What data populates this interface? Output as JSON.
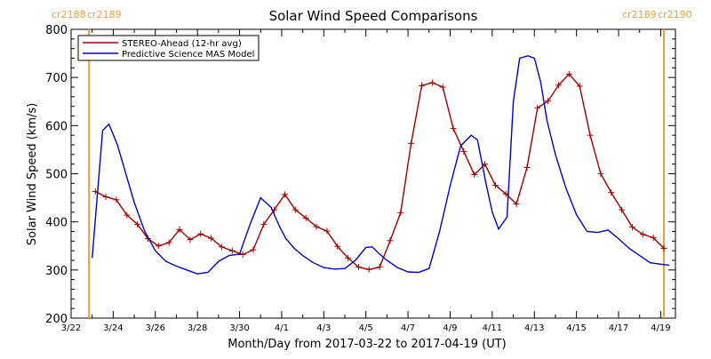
{
  "chart_data": {
    "type": "line",
    "title": "Solar Wind Speed Comparisons",
    "xlabel": "Month/Day from 2017-03-22 to 2017-04-19 (UT)",
    "ylabel": "Solar Wind Speed (km/s)",
    "xlim": [
      0,
      28.7
    ],
    "ylim": [
      200,
      800
    ],
    "yticks": [
      200,
      300,
      400,
      500,
      600,
      700,
      800
    ],
    "xticks": [
      {
        "x": 0,
        "label": "3/22"
      },
      {
        "x": 2,
        "label": "3/24"
      },
      {
        "x": 4,
        "label": "3/26"
      },
      {
        "x": 6,
        "label": "3/28"
      },
      {
        "x": 8,
        "label": "3/30"
      },
      {
        "x": 10,
        "label": "4/1"
      },
      {
        "x": 12,
        "label": "4/3"
      },
      {
        "x": 14,
        "label": "4/5"
      },
      {
        "x": 16,
        "label": "4/7"
      },
      {
        "x": 18,
        "label": "4/9"
      },
      {
        "x": 20,
        "label": "4/11"
      },
      {
        "x": 22,
        "label": "4/13"
      },
      {
        "x": 24,
        "label": "4/15"
      },
      {
        "x": 26,
        "label": "4/17"
      },
      {
        "x": 28,
        "label": "4/19"
      }
    ],
    "grid": false,
    "legend_position": "top-left",
    "colors": {
      "axes": "#000000",
      "rotation_marker": "#e8a040",
      "stereo": "#a00000",
      "mas": "#0000cc"
    },
    "rotation_markers": [
      {
        "x": 0.85,
        "label_left": "cr2188",
        "label_right": "cr2189"
      },
      {
        "x": 28.15,
        "label_left": "cr2189",
        "label_right": "cr2190"
      }
    ],
    "series": [
      {
        "name": "STEREO-Ahead (12-hr avg)",
        "marker": "plus",
        "x": [
          1.15,
          1.65,
          2.15,
          2.65,
          3.15,
          3.65,
          4.15,
          4.65,
          5.15,
          5.65,
          6.15,
          6.65,
          7.15,
          7.65,
          8.15,
          8.65,
          9.15,
          9.65,
          10.15,
          10.65,
          11.15,
          11.65,
          12.15,
          12.65,
          13.15,
          13.65,
          14.15,
          14.65,
          15.15,
          15.65,
          16.15,
          16.65,
          17.15,
          17.65,
          18.15,
          18.65,
          19.15,
          19.65,
          20.15,
          20.65,
          21.15,
          21.65,
          22.15,
          22.65,
          23.15,
          23.65,
          24.15,
          24.65,
          25.15,
          25.65,
          26.15,
          26.65,
          27.15,
          27.65,
          28.15
        ],
        "values": [
          463,
          452,
          446,
          414,
          395,
          365,
          350,
          357,
          384,
          363,
          375,
          366,
          348,
          340,
          332,
          342,
          395,
          425,
          457,
          425,
          408,
          390,
          381,
          349,
          325,
          306,
          301,
          306,
          361,
          419,
          563,
          683,
          689,
          680,
          594,
          546,
          498,
          520,
          476,
          458,
          437,
          513,
          637,
          651,
          684,
          707,
          682,
          580,
          500,
          461,
          425,
          389,
          374,
          367,
          345
        ]
      },
      {
        "name": "Predictive Science MAS Model",
        "marker": "none",
        "x": [
          1.0,
          1.5,
          1.8,
          2.2,
          2.6,
          3.0,
          3.5,
          4.0,
          4.5,
          5.0,
          5.5,
          6.0,
          6.5,
          7.0,
          7.5,
          8.0,
          8.5,
          9.0,
          9.5,
          9.9,
          10.2,
          10.6,
          11.0,
          11.5,
          12.0,
          12.5,
          13.0,
          13.5,
          14.0,
          14.3,
          14.6,
          15.0,
          15.5,
          16.0,
          16.5,
          17.0,
          17.5,
          18.0,
          18.5,
          19.0,
          19.3,
          19.7,
          20.0,
          20.3,
          20.7,
          21.0,
          21.3,
          21.7,
          22.0,
          22.3,
          22.6,
          23.0,
          23.5,
          24.0,
          24.5,
          25.0,
          25.5,
          26.0,
          26.5,
          27.0,
          27.5,
          28.0,
          28.4
        ],
        "values": [
          325,
          590,
          603,
          560,
          500,
          440,
          380,
          340,
          318,
          308,
          300,
          292,
          295,
          318,
          330,
          333,
          395,
          450,
          430,
          390,
          365,
          345,
          330,
          315,
          305,
          302,
          303,
          320,
          347,
          348,
          335,
          320,
          305,
          296,
          295,
          303,
          380,
          475,
          558,
          580,
          570,
          480,
          420,
          385,
          410,
          650,
          740,
          745,
          740,
          690,
          610,
          540,
          470,
          415,
          380,
          378,
          383,
          365,
          345,
          330,
          315,
          312,
          310
        ]
      }
    ]
  }
}
